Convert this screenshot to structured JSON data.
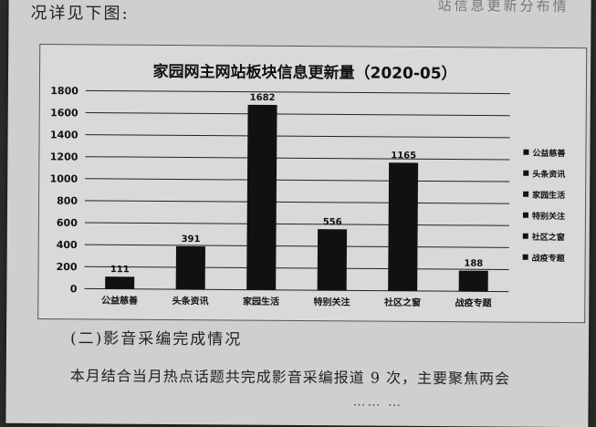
{
  "document": {
    "top_line": "况详见下图:",
    "top_right_faded": "站信息更新分布情",
    "section_heading": "(二)影音采编完成情况",
    "body_line": "本月结合当月热点话题共完成影音采编报道 9 次，主要聚焦两会",
    "body_line_2": "…… …"
  },
  "chart_data": {
    "type": "bar",
    "title": "家园网主网站板块信息更新量（2020-05）",
    "categories": [
      "公益慈善",
      "头条资讯",
      "家园生活",
      "特别关注",
      "社区之窗",
      "战疫专题"
    ],
    "values": [
      111,
      391,
      1682,
      556,
      1165,
      188
    ],
    "ylim": [
      0,
      1800
    ],
    "yticks": [
      0,
      200,
      400,
      600,
      800,
      1000,
      1200,
      1400,
      1600,
      1800
    ],
    "grid": true,
    "legend_position": "right",
    "legend": [
      "公益慈善",
      "头条资讯",
      "家园生活",
      "特别关注",
      "社区之窗",
      "战疫专题"
    ],
    "bar_color": "#111111"
  }
}
